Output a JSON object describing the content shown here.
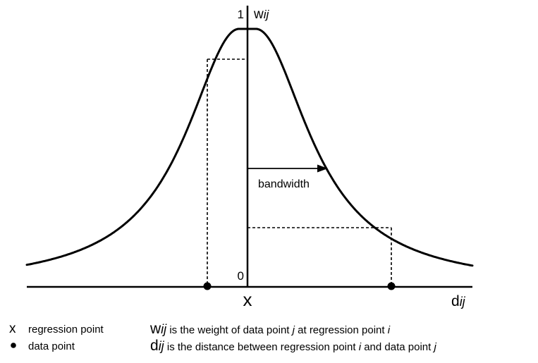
{
  "axis": {
    "y_top_label": "1",
    "y_bottom_label": "0",
    "y_var_main": "w",
    "y_var_sub": "ij",
    "x_var_main": "d",
    "x_var_sub": "ij",
    "center_marker": "x"
  },
  "bandwidth_label": "bandwidth",
  "legend": {
    "regression_symbol": "x",
    "regression_label": "regression point",
    "data_label": "data point",
    "w_def": {
      "main": "w",
      "sub": "ij",
      "t1": " is the weight of data point ",
      "j": "j",
      "t2": " at regression point ",
      "i": "i"
    },
    "d_def": {
      "main": "d",
      "sub": "ij",
      "t1": " is the distance between regression point ",
      "i": "i",
      "t2": " and data point ",
      "j": "j"
    }
  },
  "colors": {
    "stroke": "#000000",
    "background": "#ffffff"
  }
}
